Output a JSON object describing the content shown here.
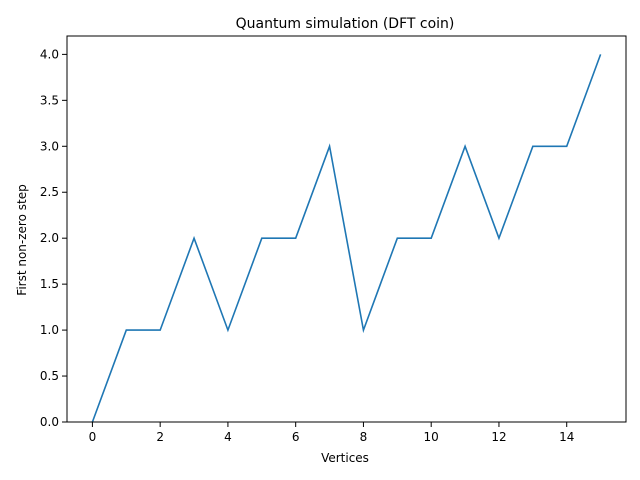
{
  "chart_data": {
    "type": "line",
    "title": "Quantum simulation (DFT coin)",
    "xlabel": "Vertices",
    "ylabel": "First non-zero step",
    "x": [
      0,
      1,
      2,
      3,
      4,
      5,
      6,
      7,
      8,
      9,
      10,
      11,
      12,
      13,
      14,
      15
    ],
    "series": [
      {
        "values": [
          0,
          1,
          1,
          2,
          1,
          2,
          2,
          3,
          1,
          2,
          2,
          3,
          2,
          3,
          3,
          4
        ],
        "color": "#1f77b4"
      }
    ],
    "xlim": [
      -0.75,
      15.75
    ],
    "ylim": [
      0,
      4.2
    ],
    "xticks": [
      0,
      2,
      4,
      6,
      8,
      10,
      12,
      14
    ],
    "xtick_labels": [
      "0",
      "2",
      "4",
      "6",
      "8",
      "10",
      "12",
      "14"
    ],
    "yticks": [
      0,
      0.5,
      1,
      1.5,
      2,
      2.5,
      3,
      3.5,
      4
    ],
    "ytick_labels": [
      "0.0",
      "0.5",
      "1.0",
      "1.5",
      "2.0",
      "2.5",
      "3.0",
      "3.5",
      "4.0"
    ],
    "grid": false,
    "legend": "none"
  }
}
